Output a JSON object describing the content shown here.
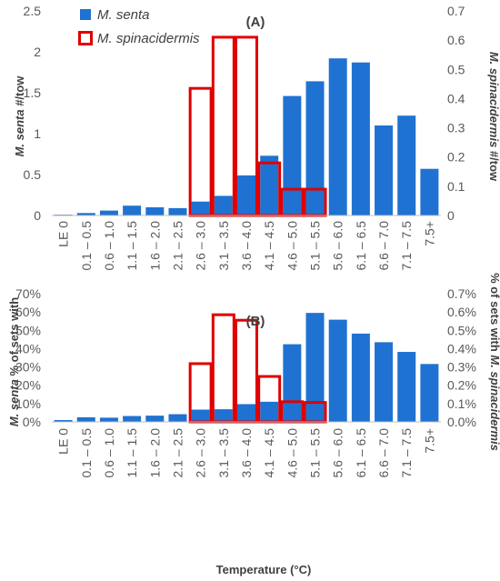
{
  "colors": {
    "senta": "#1f72d1",
    "spinacidermis": "#e00000",
    "axis": "#bfbfbf",
    "text": "#595959"
  },
  "legend": {
    "series_a": "M. senta",
    "series_b": "M. spinacidermis"
  },
  "chart_data": [
    {
      "type": "bar",
      "panel_label": "(A)",
      "legend": "top-left",
      "grid": false,
      "categories": [
        "LE 0",
        "0.1 – 0.5",
        "0.6 – 1.0",
        "1.1 – 1.5",
        "1.6 – 2.0",
        "2.1 – 2.5",
        "2.6 – 3.0",
        "3.1 – 3.5",
        "3.6 – 4.0",
        "4.1 – 4.5",
        "4.6 – 5.0",
        "5.1 – 5.5",
        "5.6 – 6.0",
        "6.1 – 6.5",
        "6.6 – 7.0",
        "7.1 – 7.5",
        "7.5+"
      ],
      "ylabel_left": {
        "italic": "M. senta",
        "rest": " #/tow"
      },
      "ylabel_right": {
        "italic": "M. spinacidermis",
        "rest": " #/tow"
      },
      "ylim_left": [
        0,
        2.5
      ],
      "ylim_right": [
        0,
        0.7
      ],
      "yticks_left": [
        "0",
        "0.5",
        "1",
        "1.5",
        "2",
        "2.5"
      ],
      "yticks_right": [
        "0",
        "0.1",
        "0.2",
        "0.3",
        "0.4",
        "0.5",
        "0.6",
        "0.7"
      ],
      "series": [
        {
          "name": "M. senta",
          "axis": "left",
          "style": "filled",
          "values": [
            0.01,
            0.03,
            0.06,
            0.12,
            0.1,
            0.09,
            0.17,
            0.24,
            0.49,
            0.73,
            1.46,
            1.64,
            1.92,
            1.87,
            1.1,
            1.22,
            0.57
          ]
        },
        {
          "name": "M. spinacidermis",
          "axis": "right",
          "style": "outline",
          "values": [
            0,
            0,
            0,
            0,
            0,
            0,
            0.435,
            0.61,
            0.61,
            0.18,
            0.09,
            0.09,
            0,
            0,
            0,
            0,
            0
          ]
        }
      ]
    },
    {
      "type": "bar",
      "panel_label": "(B)",
      "grid": false,
      "categories": [
        "LE 0",
        "0.1 – 0.5",
        "0.6 – 1.0",
        "1.1 – 1.5",
        "1.6 – 2.0",
        "2.1 – 2.5",
        "2.6 – 3.0",
        "3.1 – 3.5",
        "3.6 – 4.0",
        "4.1 – 4.5",
        "4.6 – 5.0",
        "5.1 – 5.5",
        "5.6 – 6.0",
        "6.1 – 6.5",
        "6.6 – 7.0",
        "7.1 – 7.5",
        "7.5+"
      ],
      "xlabel": "Temperature (°C)",
      "ylabel_left": {
        "italic": "M. senta",
        "rest": " % of sets with"
      },
      "ylabel_right": {
        "italic": "M. spinacidermis",
        "rest": "% of sets with ",
        "italic_last": true
      },
      "ylim_left": [
        0,
        70
      ],
      "ylim_right": [
        0,
        0.7
      ],
      "yticks_left": [
        "0%",
        "10%",
        "20%",
        "30%",
        "40%",
        "50%",
        "60%",
        "70%"
      ],
      "yticks_right": [
        "0.0%",
        "0.1%",
        "0.2%",
        "0.3%",
        "0.4%",
        "0.5%",
        "0.6%",
        "0.7%"
      ],
      "series": [
        {
          "name": "M. senta",
          "axis": "left",
          "style": "filled",
          "values": [
            1,
            2.5,
            2.3,
            3.2,
            3.4,
            4.2,
            6.7,
            6.9,
            9.7,
            11,
            42.4,
            59.5,
            55.8,
            48.2,
            43.5,
            38.2,
            31.6
          ]
        },
        {
          "name": "M. spinacidermis",
          "axis": "right",
          "style": "outline",
          "values": [
            0,
            0,
            0,
            0,
            0,
            0,
            0.318,
            0.585,
            0.555,
            0.248,
            0.11,
            0.106,
            0,
            0,
            0,
            0,
            0
          ]
        }
      ]
    }
  ]
}
